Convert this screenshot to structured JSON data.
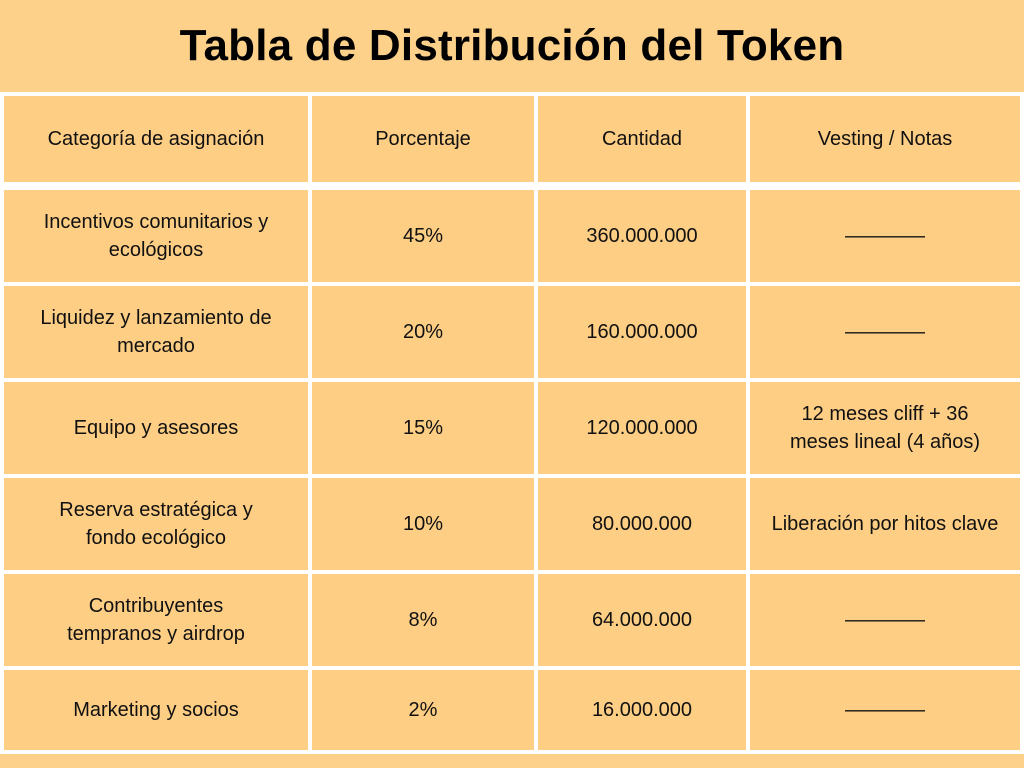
{
  "title": "Tabla de Distribución del Token",
  "headers": {
    "category": "Categoría de asignación",
    "percentage": "Porcentaje",
    "amount": "Cantidad",
    "vesting": "Vesting / Notas"
  },
  "rows": [
    {
      "category": "Incentivos comunitarios y ecológicos",
      "percentage": "45%",
      "amount": "360.000.000",
      "vesting": "————"
    },
    {
      "category": "Liquidez y lanzamiento de mercado",
      "percentage": "20%",
      "amount": "160.000.000",
      "vesting": "————"
    },
    {
      "category": "Equipo y asesores",
      "percentage": "15%",
      "amount": "120.000.000",
      "vesting": "12 meses cliff + 36 meses lineal (4 años)"
    },
    {
      "category": "Reserva estratégica y fondo ecológico",
      "percentage": "10%",
      "amount": "80.000.000",
      "vesting": "Liberación por hitos clave"
    },
    {
      "category": "Contribuyentes tempranos y airdrop",
      "percentage": "8%",
      "amount": "64.000.000",
      "vesting": "————"
    },
    {
      "category": "Marketing y socios",
      "percentage": "2%",
      "amount": "16.000.000",
      "vesting": "————"
    }
  ],
  "colors": {
    "background": "#fdd18a",
    "cell": "#fece84",
    "border": "#ffffff",
    "title_text": "#000000"
  }
}
